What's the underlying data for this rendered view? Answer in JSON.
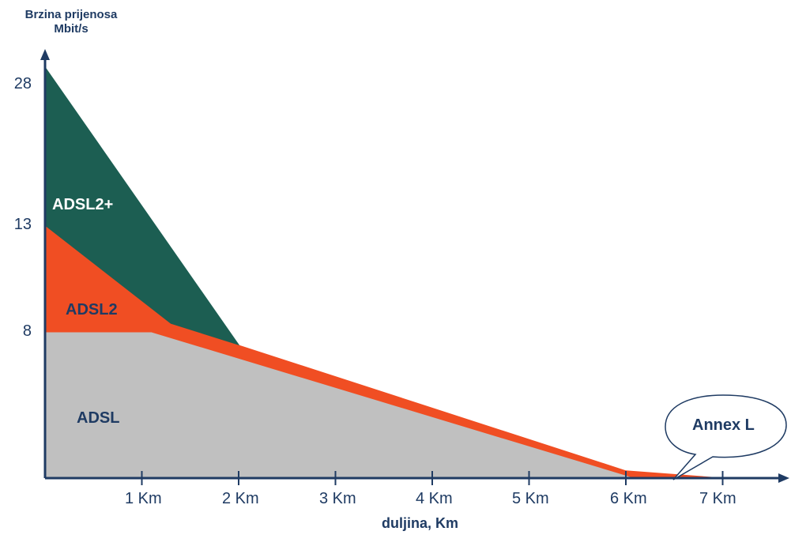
{
  "chart_data": {
    "type": "area",
    "ylabel_line1": "Brzina prijenosa",
    "ylabel_line2": "Mbit/s",
    "xlabel": "duljina, Km",
    "x_ticks": [
      "1 Km",
      "2 Km",
      "3 Km",
      "4 Km",
      "5 Km",
      "6 Km",
      "7 Km"
    ],
    "y_ticks": [
      "8",
      "13",
      "28"
    ],
    "series": [
      {
        "name": "ADSL",
        "color": "#c0c0c0",
        "label_color": "#1f3b63",
        "points": [
          [
            0,
            8
          ],
          [
            1.1,
            8
          ],
          [
            6.1,
            0
          ],
          [
            0,
            0
          ]
        ]
      },
      {
        "name": "ADSL2",
        "color": "#f04e23",
        "label_color": "#1f3b63",
        "points": [
          [
            0,
            13
          ],
          [
            1.3,
            8.4
          ],
          [
            6.0,
            0.4
          ],
          [
            7.0,
            0
          ],
          [
            6.1,
            0
          ],
          [
            1.1,
            8
          ],
          [
            0,
            8
          ]
        ]
      },
      {
        "name": "ADSL2+",
        "color": "#1c5e52",
        "label_color": "#ffffff",
        "points": [
          [
            0,
            28
          ],
          [
            2.0,
            7.3
          ],
          [
            1.3,
            8.4
          ],
          [
            0,
            13
          ]
        ]
      }
    ],
    "annotation": "Annex L"
  }
}
